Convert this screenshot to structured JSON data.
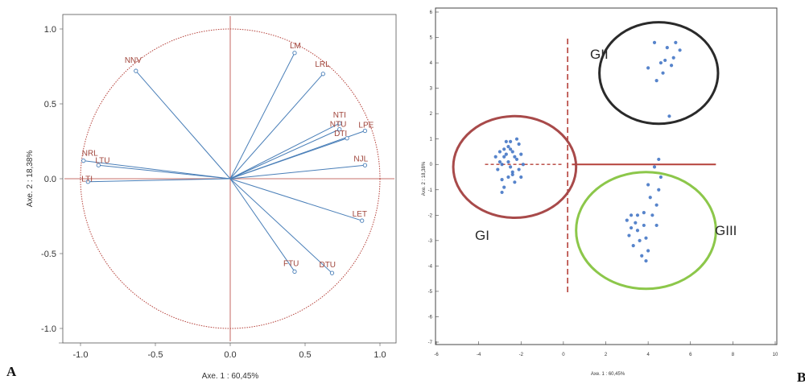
{
  "panel_letters": {
    "a": "A",
    "b": "B"
  },
  "colors": {
    "circle": "#b5413a",
    "vector": "#4a7fb8",
    "axis": "#b5413a",
    "point": "#3a6fc2",
    "ring_gi": "#a84a4a",
    "ring_gii": "#2a2a2a",
    "ring_giii": "#8cc74a",
    "divider_line": "#b5413a"
  },
  "chart_data": [
    {
      "type": "scatter",
      "subtype": "correlation-circle",
      "xlabel": "Axe. 1 : 60,45%",
      "ylabel": "Axe. 2 : 18,38%",
      "xlim": [
        -1.05,
        1.05
      ],
      "ylim": [
        -1.05,
        1.05
      ],
      "xticks": [
        "-1.0",
        "-0.5",
        "0.0",
        "0.5",
        "1.0"
      ],
      "yticks": [
        "1.0",
        "0.5",
        "0.0",
        "-0.5",
        "-1.0"
      ],
      "circle_radius": 1.0,
      "variables": [
        {
          "name": "LM",
          "x": 0.43,
          "y": 0.84
        },
        {
          "name": "LRL",
          "x": 0.62,
          "y": 0.7
        },
        {
          "name": "NNV",
          "x": -0.63,
          "y": 0.72
        },
        {
          "name": "NTI",
          "x": 0.73,
          "y": 0.37
        },
        {
          "name": "NTU",
          "x": 0.73,
          "y": 0.33
        },
        {
          "name": "LPE",
          "x": 0.9,
          "y": 0.32
        },
        {
          "name": "DTI",
          "x": 0.78,
          "y": 0.27
        },
        {
          "name": "NJL",
          "x": 0.9,
          "y": 0.09
        },
        {
          "name": "LET",
          "x": 0.88,
          "y": -0.28
        },
        {
          "name": "FTU",
          "x": 0.43,
          "y": -0.62
        },
        {
          "name": "DTU",
          "x": 0.68,
          "y": -0.63
        },
        {
          "name": "NRL",
          "x": -0.98,
          "y": 0.12
        },
        {
          "name": "LTU",
          "x": -0.88,
          "y": 0.09
        },
        {
          "name": "LTI",
          "x": -0.95,
          "y": -0.02
        }
      ]
    },
    {
      "type": "scatter",
      "subtype": "individuals",
      "xlabel": "Axe. 1 : 60,45%",
      "ylabel": "Axe. 2 : 18,38%",
      "xlim": [
        -6,
        10
      ],
      "ylim": [
        -7,
        6
      ],
      "xticks": [
        -6,
        -4,
        -2,
        0,
        2,
        4,
        6,
        8,
        10
      ],
      "yticks": [
        6,
        5,
        4,
        3,
        2,
        1,
        0,
        -1,
        -2,
        -3,
        -4,
        -5,
        -6,
        -7
      ],
      "groups": [
        {
          "name": "GI",
          "ring": {
            "cx": -2.3,
            "cy": -0.1,
            "rx": 2.9,
            "ry": 2.0
          },
          "points": [
            [
              -2.8,
              0.3
            ],
            [
              -2.5,
              0.6
            ],
            [
              -2.9,
              0.0
            ],
            [
              -2.4,
              -0.3
            ],
            [
              -3.0,
              0.5
            ],
            [
              -2.2,
              0.2
            ],
            [
              -2.6,
              -0.5
            ],
            [
              -2.1,
              0.8
            ],
            [
              -2.7,
              0.9
            ],
            [
              -3.1,
              -0.2
            ],
            [
              -2.3,
              -0.7
            ],
            [
              -2.9,
              -0.6
            ],
            [
              -2.0,
              0.4
            ],
            [
              -2.6,
              0.1
            ],
            [
              -2.4,
              0.5
            ],
            [
              -3.2,
              0.3
            ],
            [
              -2.5,
              -0.1
            ],
            [
              -1.9,
              0.0
            ],
            [
              -2.8,
              -0.9
            ],
            [
              -2.2,
              1.0
            ],
            [
              -2.7,
              0.4
            ],
            [
              -2.4,
              -0.4
            ],
            [
              -3.0,
              0.1
            ],
            [
              -2.1,
              -0.2
            ],
            [
              -2.6,
              0.7
            ],
            [
              -2.9,
              -1.1
            ],
            [
              -2.3,
              0.3
            ],
            [
              -2.0,
              -0.5
            ],
            [
              -2.5,
              0.9
            ],
            [
              -2.8,
              0.6
            ]
          ]
        },
        {
          "name": "GII",
          "ring": {
            "cx": 4.5,
            "cy": 3.6,
            "rx": 2.8,
            "ry": 2.0
          },
          "points": [
            [
              4.3,
              4.8
            ],
            [
              4.9,
              4.6
            ],
            [
              5.2,
              4.2
            ],
            [
              4.6,
              4.0
            ],
            [
              5.5,
              4.5
            ],
            [
              4.7,
              3.6
            ],
            [
              4.4,
              3.3
            ],
            [
              5.1,
              3.9
            ],
            [
              4.0,
              3.8
            ],
            [
              5.3,
              4.8
            ],
            [
              4.8,
              4.1
            ],
            [
              5.0,
              1.9
            ]
          ]
        },
        {
          "name": "GIII",
          "ring": {
            "cx": 3.9,
            "cy": -2.6,
            "rx": 3.3,
            "ry": 2.3
          },
          "points": [
            [
              3.0,
              -2.2
            ],
            [
              3.2,
              -2.5
            ],
            [
              3.4,
              -2.3
            ],
            [
              3.1,
              -2.8
            ],
            [
              3.5,
              -2.6
            ],
            [
              3.8,
              -2.4
            ],
            [
              3.6,
              -3.0
            ],
            [
              3.9,
              -2.9
            ],
            [
              3.3,
              -3.2
            ],
            [
              4.0,
              -3.4
            ],
            [
              3.7,
              -3.6
            ],
            [
              4.2,
              -2.0
            ],
            [
              4.4,
              -1.6
            ],
            [
              4.5,
              -1.0
            ],
            [
              4.6,
              -0.5
            ],
            [
              4.3,
              -0.1
            ],
            [
              4.5,
              0.2
            ],
            [
              4.1,
              -1.3
            ],
            [
              4.0,
              -0.8
            ],
            [
              4.4,
              -2.4
            ],
            [
              3.9,
              -3.8
            ],
            [
              3.5,
              -2.0
            ],
            [
              3.2,
              -2.0
            ],
            [
              3.8,
              -1.9
            ]
          ]
        }
      ]
    }
  ]
}
